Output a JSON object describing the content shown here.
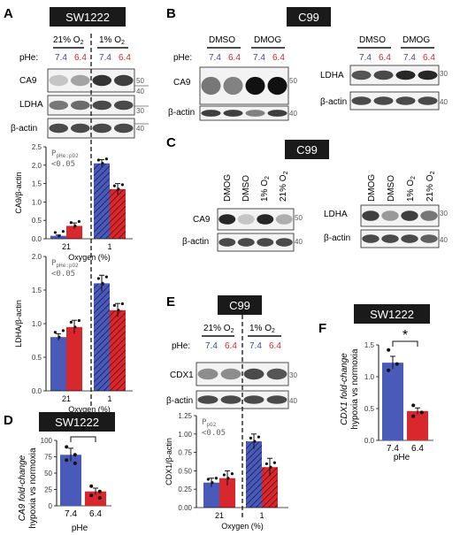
{
  "colors": {
    "blue": "#4a5ab8",
    "red": "#d9272e",
    "blueText": "#3b4aa8",
    "redText": "#d9272e",
    "black": "#1a1a1a"
  },
  "panels": {
    "A": {
      "letter": "A",
      "badge": "SW1222",
      "cond_left": "21% O",
      "cond_right": "1% O",
      "sub2": "2",
      "phe": "pHe:",
      "ph_a": "7.4",
      "ph_b": "6.4",
      "bands": [
        "CA9",
        "LDHA",
        "β-actin"
      ],
      "mw": [
        "50",
        "40",
        "30",
        "40"
      ]
    },
    "B": {
      "letter": "B",
      "badge": "C99",
      "phe": "pHe:",
      "dmso": "DMSO",
      "dmog": "DMOG",
      "ph_a": "7.4",
      "ph_b": "6.4",
      "left_bands": [
        "CA9",
        "β-actin"
      ],
      "right_bands": [
        "LDHA",
        "β-actin"
      ],
      "mw_left": [
        "50",
        "40"
      ],
      "mw_right": [
        "30",
        "40"
      ]
    },
    "C": {
      "letter": "C",
      "badge": "C99",
      "cols": [
        "DMOG",
        "DMSO",
        "1% O",
        "21% O"
      ],
      "sub2": "2",
      "left_bands": [
        "CA9",
        "β-actin"
      ],
      "right_bands": [
        "LDHA",
        "β-actin"
      ],
      "mw_left": [
        "50",
        "40"
      ],
      "mw_right": [
        "30",
        "40"
      ]
    },
    "D": {
      "letter": "D",
      "badge": "SW1222",
      "ylabel1": "CA9 fold-change",
      "ylabel2": "hypoxia vs normoxia",
      "xlabel": "pHe",
      "sig": "*"
    },
    "E": {
      "letter": "E",
      "badge": "C99",
      "cond_left": "21% O",
      "cond_right": "1% O",
      "sub2": "2",
      "phe": "pHe:",
      "ph_a": "7.4",
      "ph_b": "6.4",
      "bands": [
        "CDX1",
        "β-actin"
      ],
      "mw": [
        "30",
        "40"
      ]
    },
    "F": {
      "letter": "F",
      "badge": "SW1222",
      "ylabel1": "CDX1 fold-change",
      "ylabel2": "hypoxia vs normoxia",
      "xlabel": "pHe",
      "sig": "*"
    }
  },
  "chart_data": [
    {
      "id": "A-CA9",
      "type": "bar",
      "ylabel": "CA9/β-actin",
      "xlabel": "Oxygen (%)",
      "categories": [
        "21",
        "1"
      ],
      "ylim": [
        0,
        2.5
      ],
      "yticks": [
        "0.0",
        "0.5",
        "1.0",
        "1.5",
        "2.0",
        "2.5"
      ],
      "stat": "P",
      "stat_sub": "pHe:pO2",
      "stat_cmp": "<0.05",
      "series": [
        {
          "name": "7.4",
          "values": [
            0.08,
            2.05
          ],
          "err": [
            0.02,
            0.1
          ]
        },
        {
          "name": "6.4",
          "values": [
            0.35,
            1.35
          ],
          "err": [
            0.08,
            0.15
          ]
        }
      ]
    },
    {
      "id": "A-LDHA",
      "type": "bar",
      "ylabel": "LDHA/β-actin",
      "xlabel": "Oxygen (%)",
      "categories": [
        "21",
        "1"
      ],
      "ylim": [
        0,
        2.0
      ],
      "yticks": [
        "0.0",
        "0.5",
        "1.0",
        "1.5",
        "2.0"
      ],
      "stat": "P",
      "stat_sub": "pHe:pO2",
      "stat_cmp": "<0.05",
      "series": [
        {
          "name": "7.4",
          "values": [
            0.8,
            1.6
          ],
          "err": [
            0.05,
            0.12
          ]
        },
        {
          "name": "6.4",
          "values": [
            0.95,
            1.2
          ],
          "err": [
            0.1,
            0.1
          ]
        }
      ]
    },
    {
      "id": "D",
      "type": "bar",
      "ylabel": "CA9 fold-change hypoxia vs normoxia",
      "xlabel": "pHe",
      "categories": [
        "7.4",
        "6.4"
      ],
      "ylim": [
        0,
        100
      ],
      "yticks": [
        "0",
        "25",
        "50",
        "75",
        "100"
      ],
      "values": [
        78,
        22
      ],
      "err": [
        10,
        5
      ],
      "points": [
        [
          90,
          78,
          70,
          65
        ],
        [
          30,
          22,
          16,
          12
        ]
      ]
    },
    {
      "id": "E-CDX1",
      "type": "bar",
      "ylabel": "CDX1/β-actin",
      "xlabel": "Oxygen (%)",
      "categories": [
        "21",
        "1"
      ],
      "ylim": [
        0,
        1.25
      ],
      "yticks": [
        "0.00",
        "0.25",
        "0.50",
        "0.75",
        "1.00",
        "1.25"
      ],
      "stat": "P",
      "stat_sub": "pO2",
      "stat_cmp": "<0.05",
      "series": [
        {
          "name": "7.4",
          "values": [
            0.34,
            0.9
          ],
          "err": [
            0.06,
            0.1
          ]
        },
        {
          "name": "6.4",
          "values": [
            0.4,
            0.55
          ],
          "err": [
            0.1,
            0.12
          ]
        }
      ]
    },
    {
      "id": "F",
      "type": "bar",
      "ylabel": "CDX1 fold-change hypoxia vs normoxia",
      "xlabel": "pHe",
      "categories": [
        "7.4",
        "6.4"
      ],
      "ylim": [
        0,
        1.5
      ],
      "yticks": [
        "0.0",
        "0.5",
        "1.0",
        "1.5"
      ],
      "values": [
        1.22,
        0.46
      ],
      "err": [
        0.1,
        0.05
      ],
      "points": [
        [
          1.42,
          1.2,
          1.1
        ],
        [
          0.55,
          0.44,
          0.38
        ]
      ]
    }
  ]
}
